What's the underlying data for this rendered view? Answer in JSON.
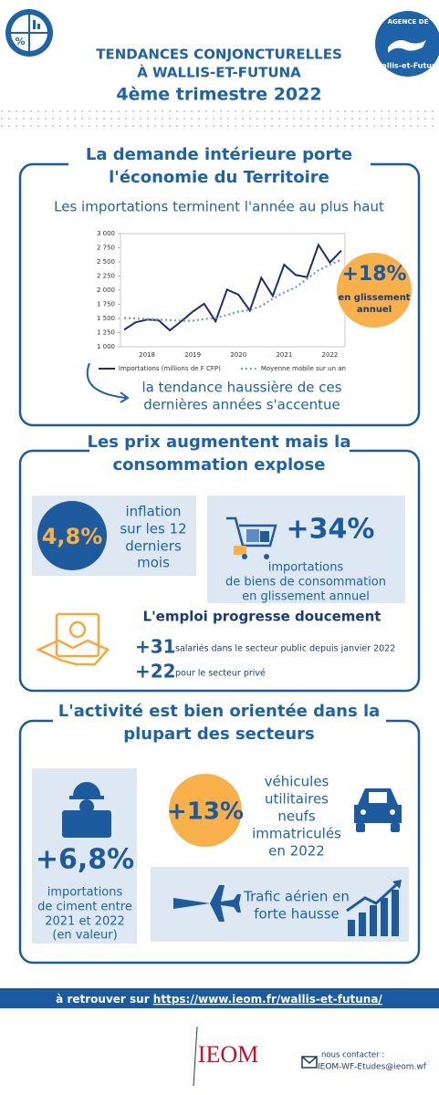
{
  "header": {
    "title_lines": [
      "TENDANCES CONJONCTURELLES",
      "À WALLIS-ET-FUTUNA"
    ],
    "period": "4ème trimestre 2022",
    "logo_lines": [
      "AGENCE DE",
      "Wallis-et-Futuna"
    ]
  },
  "section1": {
    "title_lines": [
      "La demande intérieure porte",
      "l'économie du Territoire"
    ],
    "subtitle": "Les importations terminent l'année au plus haut",
    "chart": {
      "type": "line",
      "categories": [
        null,
        null,
        "2018",
        null,
        null,
        null,
        "2019",
        null,
        null,
        null,
        "2020",
        null,
        null,
        null,
        "2021",
        null,
        null,
        null,
        "2022",
        null
      ],
      "series": [
        {
          "name": "Importations (millions de F CFP)",
          "color": "#1f2f6e",
          "style": "solid",
          "values": [
            1300,
            1430,
            1480,
            1470,
            1290,
            1450,
            1620,
            1760,
            1450,
            2010,
            1920,
            1640,
            2220,
            1900,
            2450,
            2270,
            2230,
            2800,
            2490,
            2700
          ]
        },
        {
          "name": "Moyenne mobile sur un an",
          "color": "#6a9bd4",
          "style": "dotted",
          "values": [
            1510,
            1500,
            1490,
            1480,
            1470,
            1460,
            1460,
            1490,
            1510,
            1560,
            1620,
            1650,
            1720,
            1850,
            1960,
            2050,
            2200,
            2350,
            2450,
            2540
          ]
        }
      ],
      "ylim": [
        1000,
        3000
      ],
      "yticks": [
        {
          "value": 1000,
          "label": "1 000"
        },
        {
          "value": 1250,
          "label": "1 250"
        },
        {
          "value": 1500,
          "label": "1 500"
        },
        {
          "value": 1750,
          "label": "1 750"
        },
        {
          "value": 2000,
          "label": "2 000"
        },
        {
          "value": 2250,
          "label": "2 250"
        },
        {
          "value": 2500,
          "label": "2 500"
        },
        {
          "value": 2750,
          "label": "2 750"
        },
        {
          "value": 3000,
          "label": "3 000"
        }
      ],
      "grid": false
    },
    "badge": {
      "value": "+18%",
      "caption_lines": [
        "en glissement",
        "annuel"
      ]
    },
    "note_lines": [
      "la tendance haussière de ces",
      "dernières années s'accentue"
    ]
  },
  "section2": {
    "title_lines": [
      "Les prix augmentent mais la",
      "consommation explose"
    ],
    "inflation": {
      "value": "4,8%",
      "text_lines": [
        "inflation",
        "sur les 12",
        "derniers",
        "mois"
      ]
    },
    "consumption": {
      "value": "+34%",
      "text_lines": [
        "importations",
        "de biens de consommation",
        "en glissement annuel"
      ]
    },
    "employment": {
      "title": "L'emploi progresse doucement",
      "items": [
        {
          "value": "+31",
          "text": "salariés dans le secteur public depuis janvier 2022"
        },
        {
          "value": "+22",
          "text": "pour le secteur privé"
        }
      ]
    }
  },
  "section3": {
    "title_lines": [
      "L'activité est bien orientée dans la",
      "plupart des secteurs"
    ],
    "cement": {
      "value": "+6,8%",
      "text_lines": [
        "importations",
        "de ciment entre",
        "2021 et 2022",
        "(en valeur)"
      ]
    },
    "vehicles": {
      "value": "+13%",
      "text_lines": [
        "véhicules",
        "utilitaires",
        "neufs",
        "immatriculés",
        "en 2022"
      ]
    },
    "air": {
      "text_lines": [
        "Trafic aérien en",
        "forte hausse"
      ]
    }
  },
  "footer": {
    "lead": "à retrouver sur",
    "link": "https://www.ieom.fr/wallis-et-futuna/",
    "logo": "IEOM",
    "contact_label": "nous contacter :",
    "email": "IEOM-WF-Etudes@ieom.wf"
  }
}
